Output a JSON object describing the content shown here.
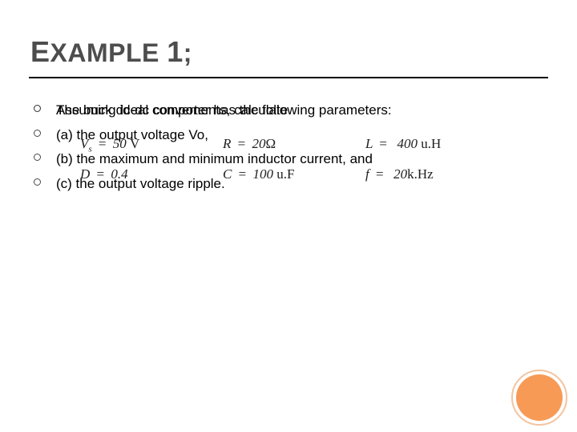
{
  "title": {
    "word1_first": "E",
    "word1_rest": "XAMPLE",
    "word2_first": "1",
    "word2_rest": ";"
  },
  "colors": {
    "title_color": "#4d4d4d",
    "underline_color": "#000000",
    "text_color": "#000000",
    "bullet_border": "#4a4a4a",
    "orange_fill": "#f79a56",
    "orange_ring": "#f3c3a0",
    "background": "#ffffff"
  },
  "typography": {
    "title_fontsize": 32,
    "title_bigletter_fontsize": 36,
    "body_fontsize": 17,
    "math_fontsize": 17,
    "math_font": "Cambria Math"
  },
  "bullets_top": [
    "The buck dc-dc converter has the following parameters:"
  ],
  "parameters": {
    "row1": [
      {
        "sym": "V",
        "sub": "s",
        "eq": "=",
        "val": "50",
        "unit": "V"
      },
      {
        "sym": "R",
        "sub": "",
        "eq": "=",
        "val": "20",
        "unit": "Ω"
      },
      {
        "sym": "L",
        "sub": "",
        "eq": "=",
        "val": "400",
        "unit": "u.H"
      }
    ],
    "row2": [
      {
        "sym": "D",
        "sub": "",
        "eq": "=",
        "val": "0.4",
        "unit": ""
      },
      {
        "sym": "C",
        "sub": "",
        "eq": "=",
        "val": "100",
        "unit": "u.F"
      },
      {
        "sym": "f",
        "sub": "",
        "eq": "=",
        "val": "20",
        "unit": "k.Hz"
      }
    ]
  },
  "bullets_bottom": [
    "Assuming ideal components, calculate",
    "(a) the output voltage Vo,",
    "(b) the maximum and minimum inductor current, and",
    "(c) the output voltage ripple."
  ]
}
